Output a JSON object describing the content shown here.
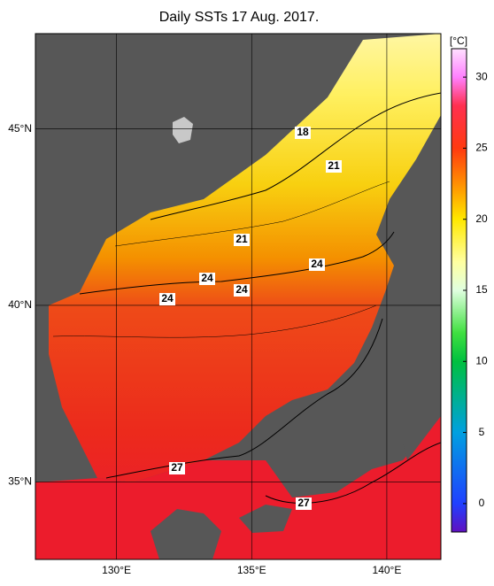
{
  "map": {
    "title": "Daily SSTs 17 Aug. 2017.",
    "xlim": [
      127,
      142
    ],
    "ylim": [
      32.8,
      47.7
    ],
    "lat_ticks": [
      {
        "value": 45,
        "label": "45°N"
      },
      {
        "value": 40,
        "label": "40°N"
      },
      {
        "value": 35,
        "label": "35°N"
      }
    ],
    "lon_ticks": [
      {
        "value": 130,
        "label": "130°E"
      },
      {
        "value": 135,
        "label": "135°E"
      },
      {
        "value": 140,
        "label": "140°E"
      }
    ],
    "colorbar": {
      "unit": "[°C]",
      "clim": [
        -2,
        32
      ],
      "ticks": [
        0,
        5,
        10,
        15,
        20,
        25,
        30
      ]
    },
    "contour_labels": [
      18,
      21,
      21,
      24,
      24,
      24,
      24,
      27,
      27
    ]
  }
}
